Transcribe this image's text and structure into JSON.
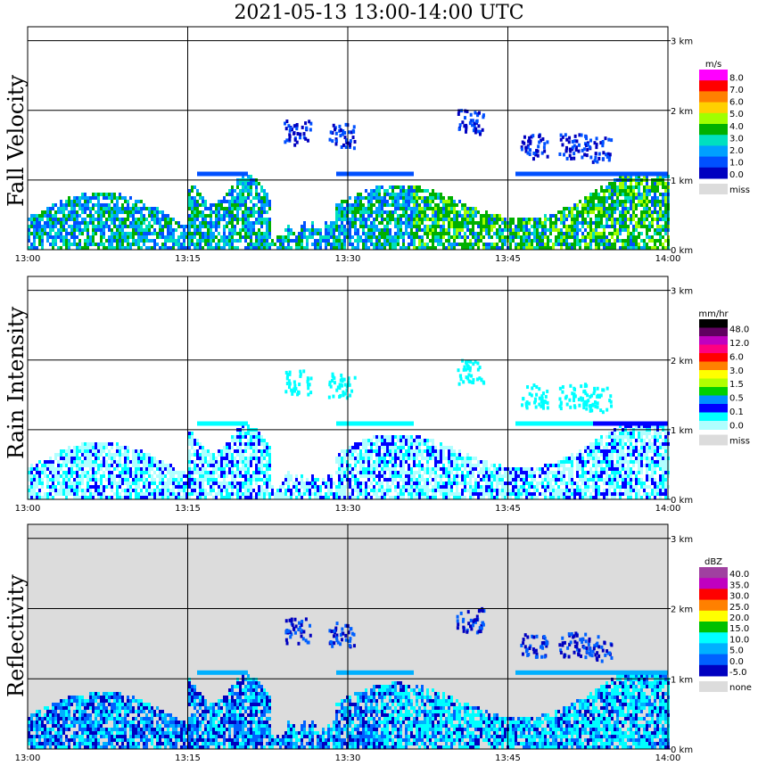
{
  "title": "2021-05-13  13:00-14:00 UTC",
  "chart_data": [
    {
      "type": "heatmap",
      "panel": "Fall Velocity",
      "x_ticks": [
        "13:00",
        "13:15",
        "13:30",
        "13:45",
        "14:00"
      ],
      "y_ticks": [
        "0 km",
        "1 km",
        "2 km",
        "3 km"
      ],
      "ylim": [
        0,
        3.2
      ],
      "background": "#ffffff",
      "colorbar": {
        "unit": "m/s",
        "labels": [
          "8.0",
          "7.0",
          "6.0",
          "5.0",
          "4.0",
          "3.0",
          "2.0",
          "1.0",
          "0.0"
        ],
        "colors": [
          "#ff00ff",
          "#ff0000",
          "#ff8000",
          "#ffd000",
          "#a0ff00",
          "#00b000",
          "#00e0c0",
          "#00a0ff",
          "#0050ff",
          "#0000c0"
        ],
        "missing_label": "miss",
        "missing_color": "#dcdcdc"
      }
    },
    {
      "type": "heatmap",
      "panel": "Rain Intensity",
      "x_ticks": [
        "13:00",
        "13:15",
        "13:30",
        "13:45",
        "14:00"
      ],
      "y_ticks": [
        "0 km",
        "1 km",
        "2 km",
        "3 km"
      ],
      "ylim": [
        0,
        3.2
      ],
      "background": "#ffffff",
      "colorbar": {
        "unit": "mm/hr",
        "labels": [
          "48.0",
          "12.0",
          "6.0",
          "3.0",
          "1.5",
          "0.5",
          "0.1",
          "0.0"
        ],
        "colors": [
          "#000000",
          "#600060",
          "#c000c0",
          "#ff0080",
          "#ff0000",
          "#ff8000",
          "#ffff00",
          "#b0ff00",
          "#00d000",
          "#0090ff",
          "#0000ff",
          "#00ffff",
          "#b0ffff"
        ],
        "missing_label": "miss",
        "missing_color": "#dcdcdc"
      }
    },
    {
      "type": "heatmap",
      "panel": "Reflectivity",
      "x_ticks": [
        "13:00",
        "13:15",
        "13:30",
        "13:45",
        "14:00"
      ],
      "y_ticks": [
        "0 km",
        "1 km",
        "2 km",
        "3 km"
      ],
      "ylim": [
        0,
        3.2
      ],
      "background": "#dcdcdc",
      "colorbar": {
        "unit": "dBZ",
        "labels": [
          "40.0",
          "35.0",
          "30.0",
          "25.0",
          "20.0",
          "15.0",
          "10.0",
          "5.0",
          "0.0",
          "-5.0"
        ],
        "colors": [
          "#a040a0",
          "#c000c0",
          "#ff0000",
          "#ff8000",
          "#ffff00",
          "#00c000",
          "#00ffff",
          "#00b0ff",
          "#0060ff",
          "#0000c0"
        ],
        "missing_label": "none",
        "missing_color": "#dcdcdc"
      }
    }
  ]
}
